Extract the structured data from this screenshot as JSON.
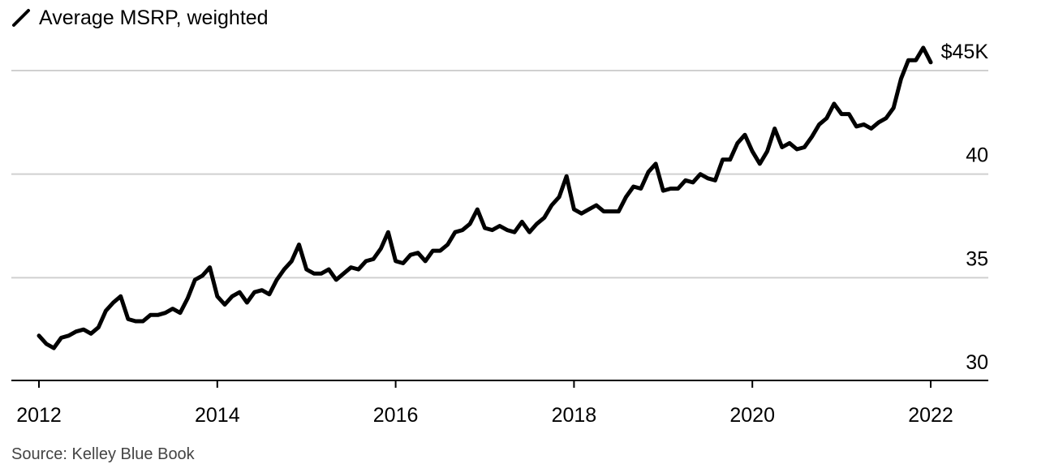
{
  "chart_data": {
    "type": "line",
    "series": [
      {
        "name": "Average MSRP, weighted",
        "color": "#000000",
        "x_start": "2012-01",
        "frequency": "monthly",
        "values": [
          32.2,
          31.8,
          31.6,
          32.1,
          32.2,
          32.4,
          32.5,
          32.3,
          32.6,
          33.4,
          33.8,
          34.1,
          33.0,
          32.9,
          32.9,
          33.2,
          33.2,
          33.3,
          33.5,
          33.3,
          34.0,
          34.9,
          35.1,
          35.5,
          34.1,
          33.7,
          34.1,
          34.3,
          33.8,
          34.3,
          34.4,
          34.2,
          34.9,
          35.4,
          35.8,
          36.6,
          35.4,
          35.2,
          35.2,
          35.4,
          34.9,
          35.2,
          35.5,
          35.4,
          35.8,
          35.9,
          36.4,
          37.2,
          35.8,
          35.7,
          36.1,
          36.2,
          35.8,
          36.3,
          36.3,
          36.6,
          37.2,
          37.3,
          37.6,
          38.3,
          37.4,
          37.3,
          37.5,
          37.3,
          37.2,
          37.7,
          37.2,
          37.6,
          37.9,
          38.5,
          38.9,
          39.9,
          38.3,
          38.1,
          38.3,
          38.5,
          38.2,
          38.2,
          38.2,
          38.9,
          39.4,
          39.3,
          40.1,
          40.5,
          39.2,
          39.3,
          39.3,
          39.7,
          39.6,
          40.0,
          39.8,
          39.7,
          40.7,
          40.7,
          41.5,
          41.9,
          41.1,
          40.5,
          41.1,
          42.2,
          41.3,
          41.5,
          41.2,
          41.3,
          41.8,
          42.4,
          42.7,
          43.4,
          42.9,
          42.9,
          42.3,
          42.4,
          42.2,
          42.5,
          42.7,
          43.2,
          44.6,
          45.5,
          45.5,
          46.1,
          45.4
        ]
      }
    ],
    "x_range": [
      "2012-01",
      "2022-01"
    ],
    "x_ticks": [
      "2012",
      "2014",
      "2016",
      "2018",
      "2020",
      "2022"
    ],
    "ylim": [
      30,
      46
    ],
    "y_ticks": [
      30,
      35,
      40,
      45
    ],
    "y_tick_labels": [
      "30",
      "35",
      "40",
      "$45K"
    ],
    "ylabel_unit": "$",
    "grid": "horizontal",
    "legend_position": "top-left",
    "title": "",
    "xlabel": "",
    "ylabel": ""
  },
  "legend": {
    "label": "Average MSRP, weighted"
  },
  "source": "Source: Kelley Blue Book"
}
